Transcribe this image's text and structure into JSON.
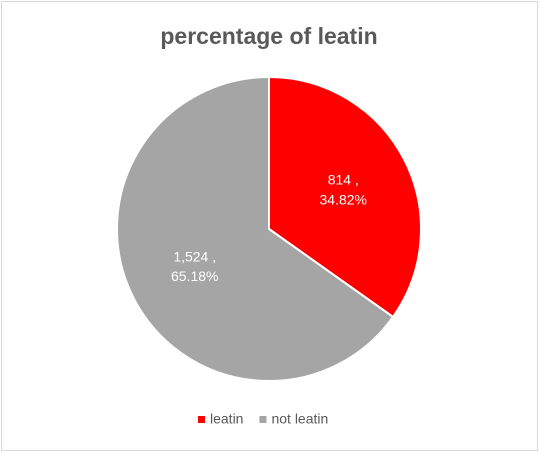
{
  "chart_data": {
    "type": "pie",
    "title": "percentage of leatin",
    "categories": [
      "leatin",
      "not leatin"
    ],
    "values": [
      814,
      1524
    ],
    "value_labels": [
      "814",
      "1,524"
    ],
    "label_separator": " ,",
    "percents": [
      34.82,
      65.18
    ],
    "percent_labels": [
      "34.82%",
      "65.18%"
    ],
    "colors": [
      "#ff0000",
      "#a5a5a5"
    ],
    "legend": "bottom"
  }
}
